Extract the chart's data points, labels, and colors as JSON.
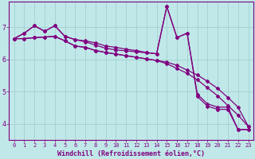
{
  "background_color": "#c0e8e8",
  "grid_color": "#a0cccc",
  "line_color": "#800080",
  "xlabel": "Windchill (Refroidissement éolien,°C)",
  "xlim": [
    -0.5,
    23.5
  ],
  "ylim": [
    3.5,
    7.8
  ],
  "yticks": [
    4,
    5,
    6,
    7
  ],
  "xticks": [
    0,
    1,
    2,
    3,
    4,
    5,
    6,
    7,
    8,
    9,
    10,
    11,
    12,
    13,
    14,
    15,
    16,
    17,
    18,
    19,
    20,
    21,
    22,
    23
  ],
  "line1_x": [
    0,
    1,
    2,
    3,
    4,
    5,
    6,
    7,
    8,
    9,
    10,
    11,
    12,
    13,
    14,
    15,
    16,
    17,
    18,
    19,
    20,
    21,
    22,
    23
  ],
  "line1_y": [
    6.65,
    6.82,
    7.05,
    6.88,
    7.05,
    6.72,
    6.62,
    6.58,
    6.52,
    6.42,
    6.38,
    6.32,
    6.28,
    6.22,
    6.18,
    7.65,
    6.68,
    6.82,
    4.92,
    4.62,
    4.52,
    4.52,
    3.82,
    3.82
  ],
  "line2_x": [
    0,
    1,
    2,
    3,
    4,
    5,
    6,
    7,
    8,
    9,
    10,
    11,
    12,
    13,
    14,
    15,
    16,
    17,
    18,
    19,
    20,
    21,
    22,
    23
  ],
  "line2_y": [
    6.65,
    6.82,
    7.05,
    6.88,
    7.05,
    6.72,
    6.62,
    6.55,
    6.45,
    6.35,
    6.3,
    6.27,
    6.24,
    6.21,
    6.18,
    7.65,
    6.68,
    6.82,
    4.85,
    4.55,
    4.45,
    4.45,
    3.82,
    3.82
  ],
  "line3_x": [
    0,
    1,
    2,
    3,
    4,
    5,
    6,
    7,
    8,
    9,
    10,
    11,
    12,
    13,
    14,
    15,
    16,
    17,
    18,
    19,
    20,
    21,
    22,
    23
  ],
  "line3_y": [
    6.65,
    6.65,
    6.68,
    6.7,
    6.72,
    6.58,
    6.42,
    6.38,
    6.28,
    6.22,
    6.17,
    6.12,
    6.07,
    6.02,
    5.97,
    5.92,
    5.82,
    5.67,
    5.52,
    5.32,
    5.1,
    4.82,
    4.52,
    3.92
  ],
  "line4_x": [
    0,
    1,
    2,
    3,
    4,
    5,
    6,
    7,
    8,
    9,
    10,
    11,
    12,
    13,
    14,
    15,
    16,
    17,
    18,
    19,
    20,
    21,
    22,
    23
  ],
  "line4_y": [
    6.65,
    6.65,
    6.68,
    6.7,
    6.72,
    6.58,
    6.42,
    6.38,
    6.28,
    6.22,
    6.17,
    6.12,
    6.07,
    6.02,
    5.97,
    5.87,
    5.72,
    5.57,
    5.37,
    5.12,
    4.87,
    4.57,
    4.27,
    3.92
  ],
  "marker": "D",
  "markersize": 2.0,
  "linewidth": 0.9,
  "font_color": "#800080",
  "tick_fontsize": 5.0,
  "label_fontsize": 6.0
}
